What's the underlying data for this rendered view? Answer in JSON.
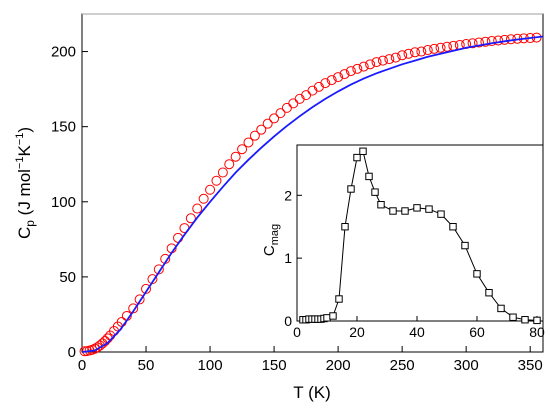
{
  "chart_data": [
    {
      "type": "scatter",
      "xlabel": "T (K)",
      "ylabel": "C_p (J mol^-1 K^-1)",
      "ylabel_parts": {
        "main": "C",
        "sub": "p",
        "units_open": " (J mol",
        "exp1": "−1",
        "units_mid": "K",
        "exp2": "−1",
        "units_close": ")"
      },
      "xlim": [
        0,
        360
      ],
      "ylim": [
        0,
        225
      ],
      "xticks": [
        0,
        50,
        100,
        150,
        200,
        250,
        300,
        350
      ],
      "yticks": [
        0,
        50,
        100,
        150,
        200
      ],
      "grid": false,
      "series": [
        {
          "marker": "open-circle",
          "color": "#ff0000",
          "x": [
            2,
            4,
            6,
            8,
            10,
            12,
            14,
            16,
            18,
            20,
            22,
            25,
            28,
            31,
            35,
            40,
            45,
            50,
            55,
            60,
            65,
            70,
            75,
            80,
            85,
            90,
            95,
            100,
            105,
            110,
            115,
            120,
            125,
            130,
            135,
            140,
            145,
            150,
            155,
            160,
            165,
            170,
            175,
            180,
            185,
            190,
            195,
            200,
            205,
            210,
            215,
            220,
            225,
            230,
            235,
            240,
            245,
            250,
            255,
            260,
            265,
            270,
            275,
            280,
            285,
            290,
            295,
            300,
            305,
            310,
            315,
            320,
            325,
            330,
            335,
            340,
            345,
            350,
            355
          ],
          "y": [
            0.5,
            0.6,
            1.0,
            1.5,
            2.2,
            3.1,
            4.3,
            5.7,
            7.3,
            9.1,
            11.0,
            14.0,
            17.0,
            20.0,
            24.0,
            29.0,
            35.0,
            42.0,
            48.5,
            55.0,
            62.0,
            69.0,
            76.0,
            82.5,
            89.0,
            95.5,
            102.0,
            108.0,
            114.0,
            119.5,
            125.0,
            130.0,
            135.0,
            139.5,
            144.0,
            148.0,
            152.0,
            155.5,
            159.0,
            162.5,
            165.5,
            168.5,
            171.0,
            174.0,
            176.5,
            179.0,
            181.0,
            183.0,
            185.0,
            187.0,
            188.5,
            190.0,
            191.5,
            193.0,
            194.0,
            195.0,
            196.0,
            197.5,
            198.5,
            199.5,
            200.0,
            201.0,
            201.8,
            202.5,
            203.2,
            203.8,
            204.4,
            205.0,
            205.5,
            206.0,
            206.5,
            207.0,
            207.4,
            207.8,
            208.2,
            208.5,
            208.8,
            209.0,
            209.3
          ]
        },
        {
          "marker": "line",
          "color": "#1a1aff",
          "x": [
            0,
            10,
            20,
            30,
            40,
            50,
            60,
            70,
            80,
            90,
            100,
            110,
            120,
            130,
            140,
            150,
            160,
            170,
            180,
            190,
            200,
            210,
            220,
            230,
            240,
            250,
            260,
            270,
            280,
            290,
            300,
            310,
            320,
            330,
            340,
            350,
            360
          ],
          "y": [
            0,
            1.0,
            6.0,
            15.0,
            27.0,
            40.0,
            53.0,
            66.0,
            78.0,
            89.5,
            100.0,
            110.0,
            119.5,
            128.0,
            136.0,
            143.5,
            150.5,
            157.0,
            163.0,
            168.5,
            173.5,
            178.0,
            182.0,
            185.5,
            188.5,
            191.5,
            194.0,
            196.5,
            198.5,
            200.5,
            202.5,
            204.0,
            205.5,
            206.8,
            208.0,
            209.0,
            210.0
          ]
        }
      ]
    },
    {
      "type": "line",
      "inset": true,
      "ylabel": "C_mag",
      "ylabel_parts": {
        "main": "C",
        "sub": "mag"
      },
      "xlabel": "",
      "xlim": [
        0,
        82
      ],
      "ylim": [
        0,
        2.8
      ],
      "xticks": [
        0,
        20,
        40,
        60,
        80
      ],
      "yticks": [
        0,
        1,
        2
      ],
      "grid": false,
      "series": [
        {
          "marker": "open-square",
          "color": "#000000",
          "x": [
            2,
            3,
            4,
            5,
            6,
            7,
            8,
            9,
            10,
            12,
            14,
            16,
            18,
            20,
            22,
            24,
            26,
            28,
            32,
            36,
            40,
            44,
            48,
            52,
            56,
            60,
            64,
            68,
            72,
            76,
            80
          ],
          "y": [
            0.02,
            0.02,
            0.03,
            0.03,
            0.03,
            0.03,
            0.03,
            0.04,
            0.05,
            0.08,
            0.35,
            1.5,
            2.1,
            2.6,
            2.7,
            2.3,
            2.05,
            1.85,
            1.75,
            1.75,
            1.8,
            1.78,
            1.7,
            1.5,
            1.2,
            0.75,
            0.45,
            0.2,
            0.06,
            0.02,
            0.01
          ]
        }
      ]
    }
  ]
}
